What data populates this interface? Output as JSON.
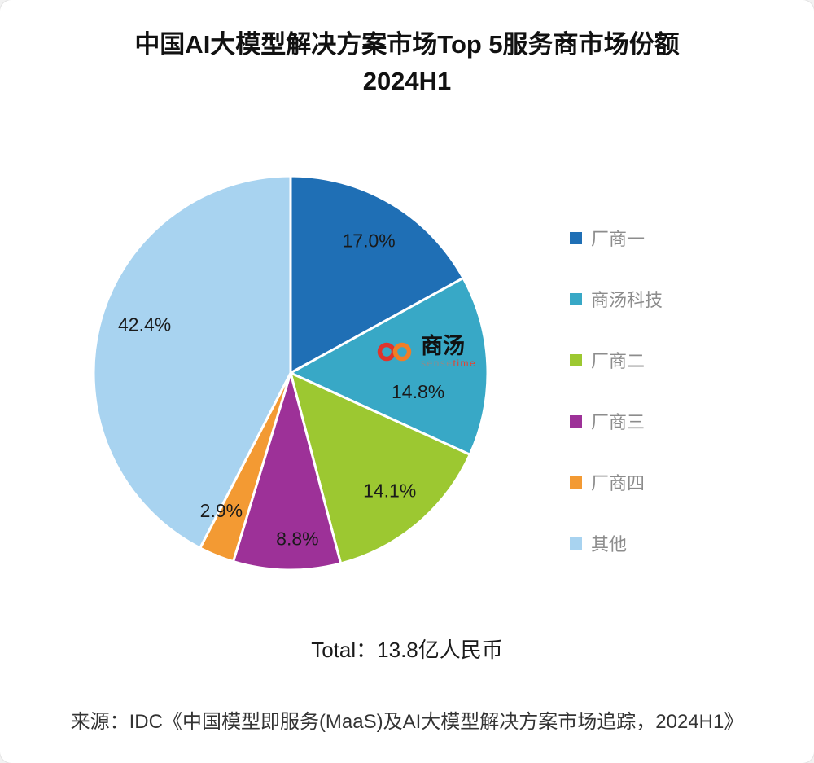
{
  "title": {
    "line1": "中国AI大模型解决方案市场Top 5服务商市场份额",
    "line2": "2024H1"
  },
  "chart_data": {
    "type": "pie",
    "title": "中国AI大模型解决方案市场Top 5服务商市场份额 2024H1",
    "start_angle_deg": 0,
    "direction": "clockwise",
    "legend_position": "right",
    "slices": [
      {
        "label": "厂商一",
        "value": 17.0,
        "color": "#1F6FB5"
      },
      {
        "label": "商汤科技",
        "value": 14.8,
        "color": "#38A8C6"
      },
      {
        "label": "厂商二",
        "value": 14.1,
        "color": "#9CC831"
      },
      {
        "label": "厂商三",
        "value": 8.8,
        "color": "#9D3198"
      },
      {
        "label": "厂商四",
        "value": 2.9,
        "color": "#F39A33"
      },
      {
        "label": "其他",
        "value": 42.4,
        "color": "#A8D3F0"
      }
    ],
    "total_label": "Total：13.8亿人民币"
  },
  "center_logo": {
    "brand": "商汤",
    "sub1": "sense",
    "sub2": "time"
  },
  "total_text": "Total：13.8亿人民币",
  "source_text": "来源：IDC《中国模型即服务(MaaS)及AI大模型解决方案市场追踪，2024H1》"
}
